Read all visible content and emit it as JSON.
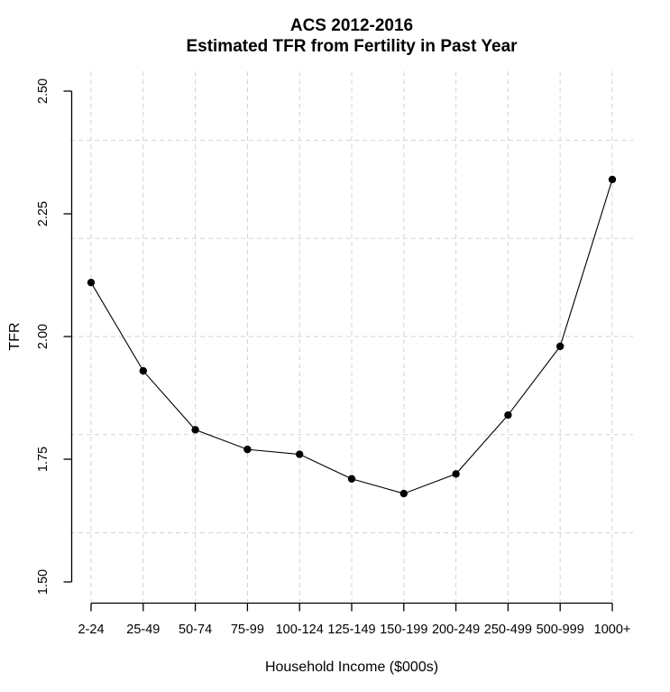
{
  "chart_data": {
    "type": "line",
    "title_line1": "ACS 2012-2016",
    "title_line2": "Estimated TFR from Fertility in Past Year",
    "xlabel": "Household Income ($000s)",
    "ylabel": "TFR",
    "categories": [
      "2-24",
      "25-49",
      "50-74",
      "75-99",
      "100-124",
      "125-149",
      "150-199",
      "200-249",
      "250-499",
      "500-999",
      "1000+"
    ],
    "series": [
      {
        "name": "Estimated TFR",
        "values": [
          2.11,
          1.93,
          1.81,
          1.77,
          1.76,
          1.71,
          1.68,
          1.72,
          1.84,
          1.98,
          2.32
        ]
      }
    ],
    "ylim": [
      1.5,
      2.5
    ],
    "ytick_values": [
      2.5,
      2.25,
      2.0,
      1.75,
      1.5
    ],
    "ytick_labels": [
      "2.50",
      "2.25",
      "2.00",
      "1.75",
      "1.50"
    ],
    "grid_horizontal_values": [
      2.4,
      2.2,
      2.0,
      1.8,
      1.6
    ],
    "grid_vertical": "one-per-category",
    "grid_style": "dashed",
    "legend": "none",
    "marker": "filled-circle",
    "colors": {
      "line": "#000000",
      "point": "#000000",
      "axis": "#000000",
      "text": "#000000",
      "grid": "#d3d3d3",
      "background": "#ffffff"
    }
  }
}
